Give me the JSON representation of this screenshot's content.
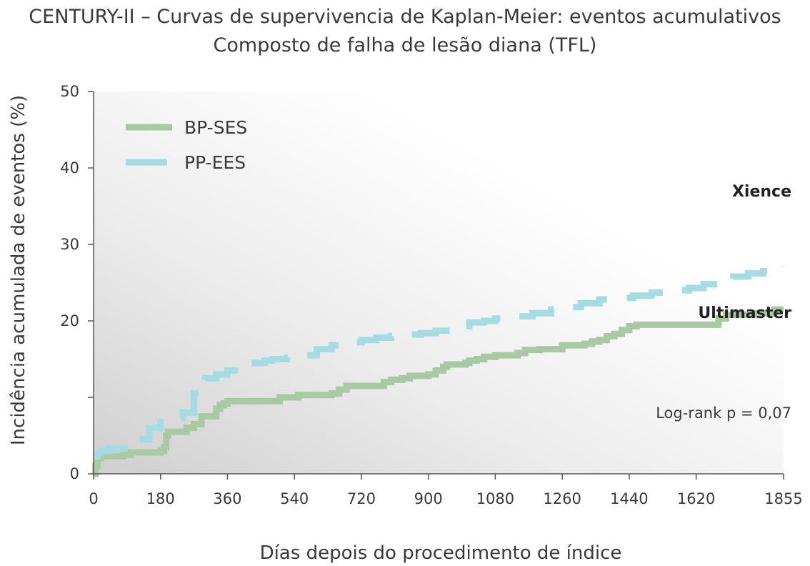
{
  "chart_data": {
    "type": "line",
    "title": "CENTURY-II – Curvas de supervivencia de Kaplan-Meier: eventos acumulativos",
    "subtitle": "Composto de falha de lesão diana (TFL)",
    "xlabel": "Días depois do procedimento de índice",
    "ylabel": "Incidência acumulada de eventos (%)",
    "xlim": [
      0,
      1855
    ],
    "ylim": [
      0,
      50
    ],
    "xticks": [
      0,
      180,
      360,
      540,
      720,
      900,
      1080,
      1260,
      1440,
      1620,
      1855
    ],
    "yticks": [
      0,
      10,
      20,
      30,
      40,
      50
    ],
    "ytick_labels": [
      "0",
      "",
      "20",
      "30",
      "40",
      "50"
    ],
    "grid": false,
    "legend_position": "top-left",
    "series": [
      {
        "name": "BP-SES",
        "color": "#a9c9a4",
        "style": "solid",
        "end_label": "Ultimaster",
        "x": [
          0,
          5,
          10,
          20,
          40,
          80,
          100,
          150,
          180,
          190,
          195,
          200,
          220,
          250,
          270,
          290,
          300,
          330,
          340,
          350,
          360,
          380,
          400,
          450,
          480,
          500,
          550,
          600,
          640,
          660,
          680,
          700,
          750,
          780,
          800,
          830,
          850,
          900,
          920,
          940,
          950,
          1000,
          1010,
          1030,
          1050,
          1080,
          1100,
          1140,
          1160,
          1200,
          1250,
          1260,
          1300,
          1320,
          1340,
          1360,
          1380,
          1400,
          1420,
          1440,
          1460,
          1500,
          1560,
          1600,
          1660,
          1680,
          1700,
          1740,
          1780,
          1800,
          1830,
          1855
        ],
        "y": [
          0,
          1,
          2,
          2.3,
          2.3,
          2.5,
          2.8,
          2.8,
          3.0,
          3.5,
          5.0,
          5.5,
          5.5,
          6.0,
          6.5,
          7.5,
          7.5,
          8.5,
          9.0,
          9.2,
          9.5,
          9.5,
          9.5,
          9.5,
          9.5,
          10.0,
          10.3,
          10.3,
          10.5,
          11.0,
          11.5,
          11.5,
          11.5,
          12.0,
          12.3,
          12.5,
          12.8,
          13.0,
          13.5,
          14.0,
          14.3,
          14.5,
          14.8,
          15.0,
          15.3,
          15.5,
          15.5,
          15.8,
          16.2,
          16.3,
          16.3,
          16.8,
          16.8,
          17.0,
          17.3,
          17.5,
          18.0,
          18.3,
          18.8,
          19.3,
          19.5,
          19.5,
          19.5,
          19.5,
          19.5,
          20.3,
          20.8,
          20.8,
          21.0,
          21.0,
          21.5,
          21.5
        ]
      },
      {
        "name": "PP-EES",
        "color": "#a5dbe2",
        "style": "dashed",
        "end_label": "Xience",
        "x": [
          0,
          10,
          20,
          40,
          60,
          100,
          120,
          150,
          180,
          200,
          220,
          240,
          270,
          300,
          330,
          360,
          380,
          420,
          460,
          480,
          520,
          560,
          600,
          640,
          680,
          720,
          760,
          800,
          840,
          880,
          920,
          960,
          990,
          1010,
          1050,
          1080,
          1120,
          1180,
          1230,
          1260,
          1310,
          1360,
          1400,
          1450,
          1500,
          1550,
          1600,
          1640,
          1680,
          1720,
          1760,
          1800,
          1830,
          1855
        ],
        "y": [
          2.3,
          2.7,
          3.0,
          3.3,
          3.3,
          3.7,
          4.5,
          6.0,
          7.3,
          7.3,
          7.3,
          8.0,
          10.5,
          12.5,
          13.0,
          13.5,
          14.0,
          14.5,
          14.8,
          15.0,
          15.2,
          15.5,
          16.3,
          16.8,
          17.2,
          17.5,
          17.8,
          18.0,
          18.2,
          18.4,
          18.7,
          19.0,
          19.3,
          19.8,
          20.0,
          20.3,
          20.6,
          21.0,
          21.5,
          21.8,
          22.3,
          22.8,
          23.0,
          23.3,
          23.7,
          24.0,
          24.3,
          24.8,
          25.3,
          25.8,
          26.2,
          26.5,
          27.0,
          27.2
        ]
      }
    ],
    "annotations": [
      "Log-rank p = 0,07"
    ]
  }
}
